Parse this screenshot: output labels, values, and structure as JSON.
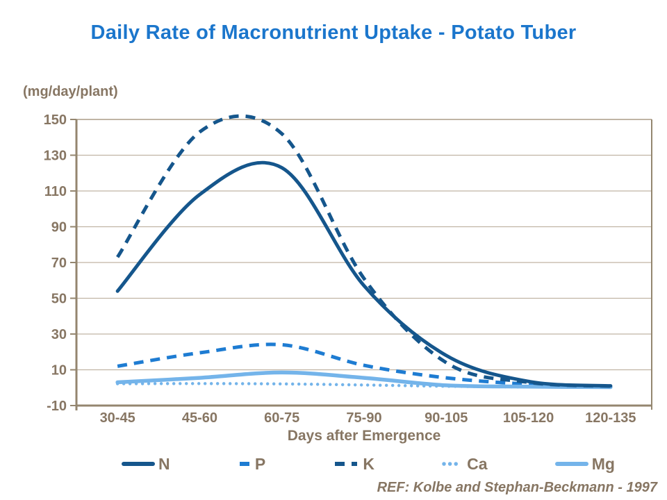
{
  "title": "Daily Rate of Macronutrient Uptake - Potato Tuber",
  "y_axis_unit": "(mg/day/plant)",
  "x_axis_title": "Days after Emergence",
  "reference": "REF: Kolbe and Stephan-Beckmann - 1997",
  "colors": {
    "title_blue": "#1b76cc",
    "dark_blue": "#15568c",
    "medium_blue": "#1e7cd2",
    "light_blue": "#74b4ea",
    "text_taupe": "#877663",
    "axis_line": "#94866f",
    "gridline": "#c0b4a4"
  },
  "chart_data": {
    "type": "line",
    "title": "Daily Rate of Macronutrient Uptake - Potato Tuber",
    "xlabel": "Days after Emergence",
    "ylabel": "(mg/day/plant)",
    "categories": [
      "30-45",
      "45-60",
      "60-75",
      "75-90",
      "90-105",
      "105-120",
      "120-135"
    ],
    "yticks": [
      150,
      130,
      110,
      90,
      70,
      50,
      30,
      10,
      -10
    ],
    "ylim": [
      -10,
      150
    ],
    "grid": "horizontal",
    "legend_position": "bottom",
    "smoothed": true,
    "series": [
      {
        "name": "N",
        "line_style": "solid",
        "color": "#15568c",
        "values": [
          54,
          108,
          123,
          57,
          18,
          3.5,
          1
        ]
      },
      {
        "name": "P",
        "line_style": "dashed",
        "color": "#1e7cd2",
        "values": [
          12,
          19.5,
          24,
          12.5,
          5.5,
          2,
          0.8
        ]
      },
      {
        "name": "K",
        "line_style": "dashed",
        "color": "#15568c",
        "values": [
          73,
          143,
          142,
          61,
          14,
          3,
          0.8
        ]
      },
      {
        "name": "Ca",
        "line_style": "dotted",
        "color": "#74b4ea",
        "values": [
          2.2,
          2.3,
          2.1,
          1.5,
          0.8,
          0.4,
          0.2
        ]
      },
      {
        "name": "Mg",
        "line_style": "solid",
        "color": "#74b4ea",
        "values": [
          3,
          5.5,
          8.5,
          5.5,
          1.3,
          0.6,
          0.3
        ]
      }
    ]
  }
}
